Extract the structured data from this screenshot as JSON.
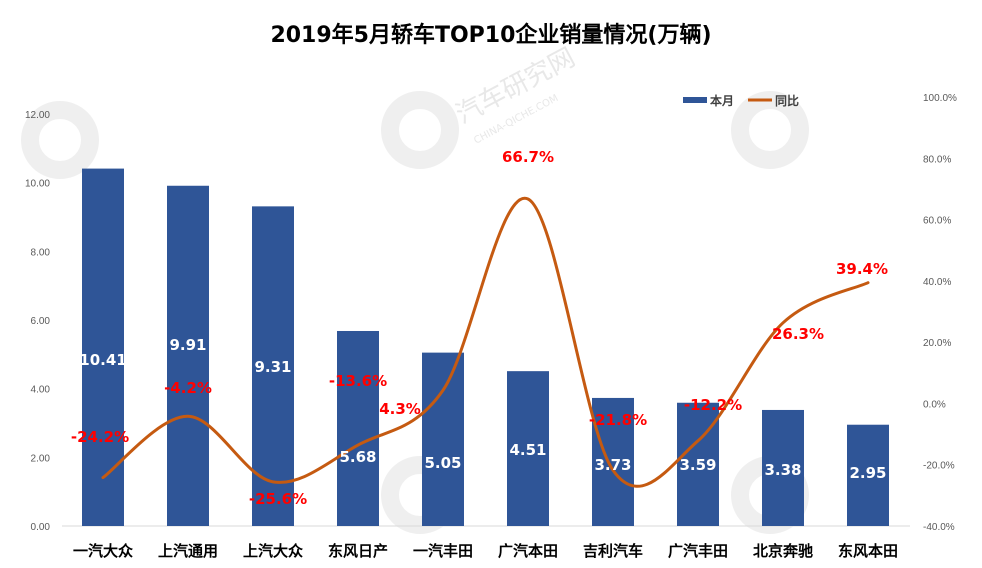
{
  "chart_data": {
    "type": "bar+line",
    "title": "2019年5月轿车TOP10企业销量情况(万辆)",
    "categories": [
      "一汽大众",
      "上汽通用",
      "上汽大众",
      "东风日产",
      "一汽丰田",
      "广汽本田",
      "吉利汽车",
      "广汽丰田",
      "北京奔驰",
      "东风本田"
    ],
    "series": [
      {
        "name": "本月",
        "type": "bar",
        "axis": "left",
        "values": [
          10.41,
          9.91,
          9.31,
          5.68,
          5.05,
          4.51,
          3.73,
          3.59,
          3.38,
          2.95
        ],
        "labels": [
          "10.41",
          "9.91",
          "9.31",
          "5.68",
          "5.05",
          "4.51",
          "3.73",
          "3.59",
          "3.38",
          "2.95"
        ],
        "color": "#2f5597"
      },
      {
        "name": "同比",
        "type": "line",
        "smooth": true,
        "axis": "right",
        "values": [
          -24.2,
          -4.2,
          -25.6,
          -13.6,
          4.3,
          66.7,
          -21.8,
          -12.2,
          26.3,
          39.4
        ],
        "labels": [
          "-24.2%",
          "-4.2%",
          "-25.6%",
          "-13.6%",
          "4.3%",
          "66.7%",
          "-21.8%",
          "-12.2%",
          "26.3%",
          "39.4%"
        ],
        "color": "#c55a11"
      }
    ],
    "y_left": {
      "range": [
        0,
        12
      ],
      "ticks": [
        "0.00",
        "2.00",
        "4.00",
        "6.00",
        "8.00",
        "10.00",
        "12.00"
      ]
    },
    "y_right": {
      "range": [
        -40,
        100
      ],
      "ticks": [
        "-40.0%",
        "-20.0%",
        "0.0%",
        "20.0%",
        "40.0%",
        "60.0%",
        "80.0%",
        "100.0%"
      ]
    },
    "xlabel": "",
    "ylabel": "",
    "grid": false,
    "legend": {
      "position": "top-right",
      "entries": [
        "本月",
        "同比"
      ]
    },
    "label_color": "#ff0000"
  },
  "watermark": {
    "text": "汽车研究网",
    "subtext": "CHINA-QICHE.COM"
  }
}
